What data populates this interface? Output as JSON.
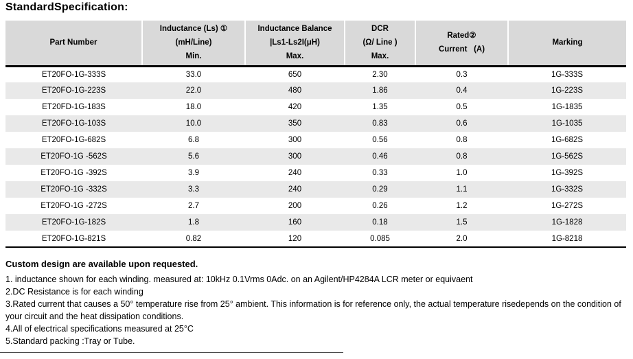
{
  "title": "StandardSpecification:",
  "table": {
    "columns": [
      {
        "line1": "Part Number",
        "line2": "",
        "line3": ""
      },
      {
        "line1": "Inductance (Ls) ①",
        "line2": "(mH/Line)",
        "line3": "Min."
      },
      {
        "line1": "Inductance Balance",
        "line2": "|Ls1-Ls2I(μH)",
        "line3": "Max."
      },
      {
        "line1": "DCR",
        "line2": "(Ω/ Line )",
        "line3": "Max."
      },
      {
        "line1": "Rated②",
        "line2": "Current   (A)",
        "line3": ""
      },
      {
        "line1": "Marking",
        "line2": "",
        "line3": ""
      }
    ],
    "rows": [
      [
        "ET20FO-1G-333S",
        "33.0",
        "650",
        "2.30",
        "0.3",
        "1G-333S"
      ],
      [
        "ET20FO-1G-223S",
        "22.0",
        "480",
        "1.86",
        "0.4",
        "1G-223S"
      ],
      [
        "ET20FD-1G-183S",
        "18.0",
        "420",
        "1.35",
        "0.5",
        "1G-1835"
      ],
      [
        "ET20FO-1G-103S",
        "10.0",
        "350",
        "0.83",
        "0.6",
        "1G-1035"
      ],
      [
        "ET20FO-1G-682S",
        "6.8",
        "300",
        "0.56",
        "0.8",
        "1G-682S"
      ],
      [
        "ET20FO-1G -562S",
        "5.6",
        "300",
        "0.46",
        "0.8",
        "1G-562S"
      ],
      [
        "ET20FO-1G -392S",
        "3.9",
        "240",
        "0.33",
        "1.0",
        "1G-392S"
      ],
      [
        "ET20FO-1G -332S",
        "3.3",
        "240",
        "0.29",
        "1.1",
        "1G-332S"
      ],
      [
        "ET20FO-1G -272S",
        "2.7",
        "200",
        "0.26",
        "1.2",
        "1G-272S"
      ],
      [
        "ET20FO-1G-182S",
        "1.8",
        "160",
        "0.18",
        "1.5",
        "1G-1828"
      ],
      [
        "ET20FO-1G-821S",
        "0.82",
        "120",
        "0.085",
        "2.0",
        "1G-8218"
      ]
    ]
  },
  "notes": {
    "custom_line": "Custom design are available upon requested.",
    "items": [
      "1. inductance shown for each winding. measured at: 10kHz 0.1Vrms 0Adc. on an Agilent/HP4284A LCR meter or equivaent",
      "2.DC Resistance is for each winding",
      "3.Rated current that causes a 50° temperature rise from 25° ambient. This information is for reference only, the actual temperature risedepends on the condition of your circuit and the heat dissipation conditions.",
      "4.All of electrical specifications measured at 25°C",
      "5.Standard packing :Tray or Tube."
    ]
  },
  "colors": {
    "header_bg": "#d9d9d9",
    "stripe_bg": "#e9e9e9",
    "rule": "#000000"
  }
}
